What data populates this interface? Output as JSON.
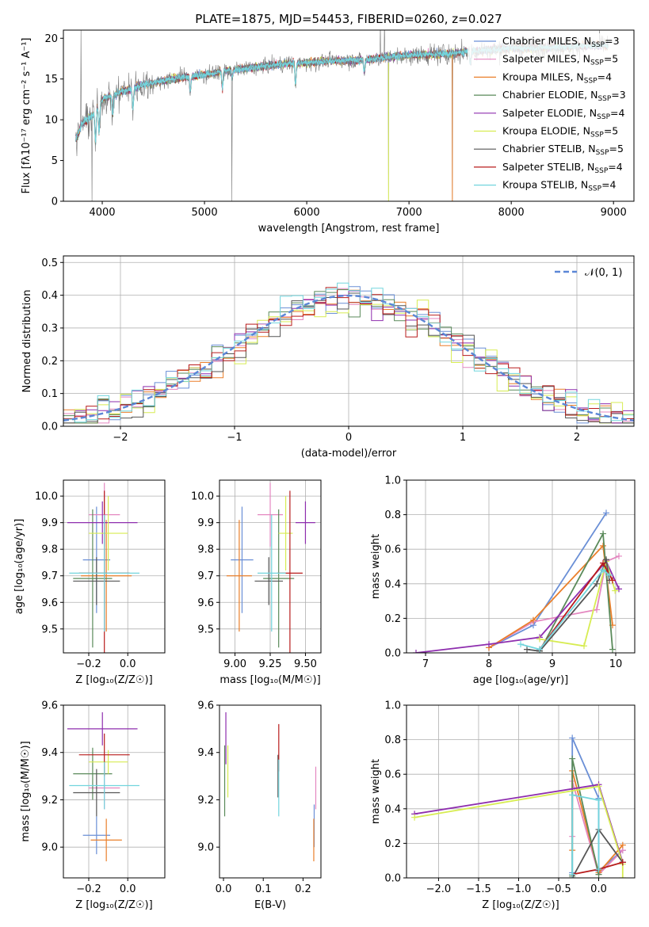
{
  "figure_title": "PLATE=1875, MJD=54453, FIBERID=0260, z=0.027",
  "legend_names": [
    "Chabrier MILES, N",
    "Salpeter MILES, N",
    "Kroupa MILES, N",
    "Chabrier ELODIE, N",
    "Salpeter ELODIE, N",
    "Kroupa ELODIE, N",
    "Chabrier STELIB, N",
    "Salpeter STELIB, N",
    "Kroupa STELIB, N"
  ],
  "legend_sub": "SSP",
  "legend_nssp": [
    "3",
    "5",
    "4",
    "3",
    "4",
    "5",
    "5",
    "4",
    "4"
  ],
  "colors": [
    "#6a8fd6",
    "#e487c0",
    "#ea7f2a",
    "#5a8a5a",
    "#8e2eae",
    "#d7ec52",
    "#555555",
    "#b81c1c",
    "#72d5dd"
  ],
  "gauss_label": "𝒩(0, 1)",
  "chart_data": [
    {
      "type": "line",
      "panel": "spectrum",
      "title": "PLATE=1875, MJD=54453, FIBERID=0260, z=0.027",
      "xlabel": "wavelength [Angstrom, rest frame]",
      "ylabel": "Flux [f_λ 10^-17 erg cm^-2 s^-1 A^-1]",
      "xlim": [
        3620,
        9200
      ],
      "ylim": [
        0,
        21
      ],
      "x_ticks": [
        4000,
        5000,
        6000,
        7000,
        8000,
        9000
      ],
      "y_ticks": [
        0,
        5,
        10,
        15,
        20
      ],
      "legend_position": "top-right",
      "grid": false,
      "continuum": {
        "x": [
          3740,
          3800,
          3900,
          4000,
          4100,
          4200,
          4400,
          4600,
          4800,
          5000,
          5200,
          5400,
          5600,
          5800,
          6000,
          6200,
          6400,
          6600,
          6800,
          7000,
          7200,
          7400,
          7600,
          7800,
          8000,
          8200,
          8400,
          8600,
          8800,
          8950
        ],
        "y": [
          7.5,
          9.5,
          10.5,
          12.5,
          13.0,
          13.5,
          14.3,
          14.8,
          15.3,
          15.5,
          16.0,
          16.3,
          16.6,
          16.9,
          17.0,
          17.2,
          17.3,
          17.4,
          17.7,
          17.9,
          18.0,
          18.1,
          18.4,
          18.6,
          18.8,
          18.8,
          18.9,
          19.0,
          19.1,
          19.2
        ]
      }
    },
    {
      "type": "histogram",
      "panel": "residuals",
      "xlabel": "(data-model)/error",
      "ylabel": "Normed distribution",
      "xlim": [
        -2.5,
        2.5
      ],
      "ylim": [
        0,
        0.52
      ],
      "x_ticks": [
        -2,
        -1,
        0,
        1,
        2
      ],
      "y_ticks": [
        0.0,
        0.1,
        0.2,
        0.3,
        0.4,
        0.5
      ],
      "grid": true,
      "bin_width": 0.1,
      "gaussian": {
        "name": "𝒩(0, 1)",
        "mean": 0,
        "sigma": 1
      }
    },
    {
      "type": "scatter",
      "panel": "age-vs-Z",
      "xlabel": "Z [log10(Z/Z☉)]",
      "ylabel": "age [log10(age/yr)]",
      "xlim": [
        -0.33,
        0.19
      ],
      "ylim": [
        9.41,
        10.06
      ],
      "x_ticks": [
        -0.2,
        0.0
      ],
      "y_ticks": [
        9.5,
        9.6,
        9.7,
        9.8,
        9.9,
        10.0
      ],
      "grid": true,
      "points": [
        {
          "x": -0.16,
          "xerr": 0.07,
          "y": 9.76,
          "yerr": 0.2
        },
        {
          "x": -0.12,
          "xerr": 0.08,
          "y": 9.93,
          "yerr": 0.12
        },
        {
          "x": -0.11,
          "xerr": 0.13,
          "y": 9.7,
          "yerr": 0.21
        },
        {
          "x": -0.18,
          "xerr": 0.1,
          "y": 9.69,
          "yerr": 0.26
        },
        {
          "x": -0.13,
          "xerr": 0.18,
          "y": 9.9,
          "yerr": 0.08
        },
        {
          "x": -0.1,
          "xerr": 0.1,
          "y": 9.86,
          "yerr": 0.14
        },
        {
          "x": -0.16,
          "xerr": 0.12,
          "y": 9.68,
          "yerr": 0.09
        },
        {
          "x": -0.12,
          "xerr": 0.13,
          "y": 9.71,
          "yerr": 0.31
        },
        {
          "x": -0.12,
          "xerr": 0.18,
          "y": 9.71,
          "yerr": 0.22
        }
      ]
    },
    {
      "type": "scatter",
      "panel": "age-vs-mass",
      "xlabel": "mass [log10(M/M☉)]",
      "ylabel": "",
      "xlim": [
        8.89,
        9.61
      ],
      "ylim": [
        9.41,
        10.06
      ],
      "x_ticks": [
        9.0,
        9.25,
        9.5
      ],
      "y_ticks": [
        9.5,
        9.6,
        9.7,
        9.8,
        9.9,
        10.0
      ],
      "grid": true,
      "points": [
        {
          "x": 9.05,
          "xerr": 0.08,
          "y": 9.76,
          "yerr": 0.2
        },
        {
          "x": 9.25,
          "xerr": 0.09,
          "y": 9.93,
          "yerr": 0.12
        },
        {
          "x": 9.03,
          "xerr": 0.09,
          "y": 9.7,
          "yerr": 0.21
        },
        {
          "x": 9.31,
          "xerr": 0.11,
          "y": 9.69,
          "yerr": 0.26
        },
        {
          "x": 9.5,
          "xerr": 0.07,
          "y": 9.9,
          "yerr": 0.08
        },
        {
          "x": 9.36,
          "xerr": 0.05,
          "y": 9.86,
          "yerr": 0.14
        },
        {
          "x": 9.24,
          "xerr": 0.1,
          "y": 9.68,
          "yerr": 0.09
        },
        {
          "x": 9.39,
          "xerr": 0.09,
          "y": 9.71,
          "yerr": 0.31
        },
        {
          "x": 9.26,
          "xerr": 0.1,
          "y": 9.71,
          "yerr": 0.22
        }
      ]
    },
    {
      "type": "line",
      "panel": "mass-weight-vs-age",
      "xlabel": "age [log10(age/yr)]",
      "ylabel": "mass weight",
      "xlim": [
        6.7,
        10.3
      ],
      "ylim": [
        0,
        1.0
      ],
      "x_ticks": [
        7,
        8,
        9,
        10
      ],
      "y_ticks": [
        0.0,
        0.2,
        0.4,
        0.6,
        0.8,
        1.0
      ],
      "grid": true,
      "series": [
        {
          "x": [
            8.0,
            8.7,
            9.85
          ],
          "y": [
            0.03,
            0.16,
            0.81
          ]
        },
        {
          "x": [
            8.0,
            8.7,
            9.7,
            9.85,
            10.05
          ],
          "y": [
            0.03,
            0.18,
            0.25,
            0.53,
            0.56
          ]
        },
        {
          "x": [
            8.0,
            8.7,
            9.8,
            9.95
          ],
          "y": [
            0.03,
            0.19,
            0.62,
            0.16
          ]
        },
        {
          "x": [
            8.8,
            9.8,
            9.95
          ],
          "y": [
            0.01,
            0.69,
            0.02
          ]
        },
        {
          "x": [
            6.85,
            8.0,
            8.8,
            9.85,
            10.05
          ],
          "y": [
            0.0,
            0.05,
            0.09,
            0.53,
            0.37
          ]
        },
        {
          "x": [
            8.8,
            9.5,
            9.85,
            9.99
          ],
          "y": [
            0.08,
            0.04,
            0.53,
            0.36
          ]
        },
        {
          "x": [
            8.6,
            8.8,
            9.7,
            9.85,
            9.9
          ],
          "y": [
            0.02,
            0.01,
            0.4,
            0.54,
            0.42
          ]
        },
        {
          "x": [
            8.8,
            9.8,
            9.95
          ],
          "y": [
            0.02,
            0.52,
            0.42
          ]
        },
        {
          "x": [
            8.5,
            8.8,
            9.8,
            9.9
          ],
          "y": [
            0.05,
            0.02,
            0.48,
            0.45
          ]
        }
      ]
    },
    {
      "type": "scatter",
      "panel": "mass-vs-Z",
      "xlabel": "Z [log10(Z/Z☉)]",
      "ylabel": "mass [log10(M/M☉)]",
      "xlim": [
        -0.33,
        0.19
      ],
      "ylim": [
        8.87,
        9.6
      ],
      "x_ticks": [
        -0.2,
        0.0
      ],
      "y_ticks": [
        9.0,
        9.2,
        9.4,
        9.6
      ],
      "grid": true,
      "points": [
        {
          "x": -0.16,
          "xerr": 0.07,
          "y": 9.05,
          "yerr": 0.08
        },
        {
          "x": -0.12,
          "xerr": 0.08,
          "y": 9.25,
          "yerr": 0.09
        },
        {
          "x": -0.11,
          "xerr": 0.08,
          "y": 9.03,
          "yerr": 0.09
        },
        {
          "x": -0.18,
          "xerr": 0.1,
          "y": 9.31,
          "yerr": 0.11
        },
        {
          "x": -0.13,
          "xerr": 0.18,
          "y": 9.5,
          "yerr": 0.07
        },
        {
          "x": -0.1,
          "xerr": 0.1,
          "y": 9.36,
          "yerr": 0.05
        },
        {
          "x": -0.16,
          "xerr": 0.12,
          "y": 9.23,
          "yerr": 0.1
        },
        {
          "x": -0.12,
          "xerr": 0.13,
          "y": 9.39,
          "yerr": 0.09
        },
        {
          "x": -0.12,
          "xerr": 0.18,
          "y": 9.26,
          "yerr": 0.1
        }
      ]
    },
    {
      "type": "scatter",
      "panel": "mass-vs-ebv",
      "xlabel": "E(B-V)",
      "ylabel": "",
      "xlim": [
        -0.01,
        0.245
      ],
      "ylim": [
        8.87,
        9.6
      ],
      "x_ticks": [
        0.0,
        0.1,
        0.2
      ],
      "y_ticks": [
        9.0,
        9.2,
        9.4,
        9.6
      ],
      "grid": false,
      "points": [
        {
          "x": 0.228,
          "y": 9.09,
          "yerr": 0.09
        },
        {
          "x": 0.232,
          "y": 9.25,
          "yerr": 0.09
        },
        {
          "x": 0.227,
          "y": 9.03,
          "yerr": 0.09
        },
        {
          "x": 0.003,
          "y": 9.28,
          "yerr": 0.15
        },
        {
          "x": 0.006,
          "y": 9.46,
          "yerr": 0.11
        },
        {
          "x": 0.011,
          "y": 9.32,
          "yerr": 0.11
        },
        {
          "x": 0.137,
          "y": 9.3,
          "yerr": 0.09
        },
        {
          "x": 0.139,
          "y": 9.42,
          "yerr": 0.1
        },
        {
          "x": 0.139,
          "y": 9.25,
          "yerr": 0.12
        }
      ]
    },
    {
      "type": "line",
      "panel": "mass-weight-vs-Z",
      "xlabel": "Z [log10(Z/Z☉)]",
      "ylabel": "mass weight",
      "xlim": [
        -2.4,
        0.45
      ],
      "ylim": [
        0,
        1.0
      ],
      "x_ticks": [
        -2.0,
        -1.5,
        -1.0,
        -0.5,
        0.0
      ],
      "y_ticks": [
        0.0,
        0.2,
        0.4,
        0.6,
        0.8,
        1.0
      ],
      "grid": true,
      "series": [
        {
          "x": [
            -0.33,
            -0.33,
            0.0,
            0.0,
            0.3
          ],
          "y": [
            0.03,
            0.81,
            0.46,
            0.04,
            0.16
          ]
        },
        {
          "x": [
            -0.33,
            -0.33,
            0.0,
            0.3
          ],
          "y": [
            0.24,
            0.56,
            0.02,
            0.16
          ]
        },
        {
          "x": [
            -0.33,
            -0.33,
            0.0,
            0.3
          ],
          "y": [
            0.16,
            0.62,
            0.03,
            0.19
          ]
        },
        {
          "x": [
            -0.33,
            -0.33,
            0.0
          ],
          "y": [
            0.01,
            0.69,
            0.02
          ]
        },
        {
          "x": [
            -2.3,
            0.0,
            0.3
          ],
          "y": [
            0.37,
            0.54,
            0.09
          ]
        },
        {
          "x": [
            -2.3,
            0.0,
            0.3,
            0.3
          ],
          "y": [
            0.35,
            0.53,
            0.08,
            0.0
          ]
        },
        {
          "x": [
            -0.33,
            0.0,
            0.3
          ],
          "y": [
            0.0,
            0.28,
            0.09
          ]
        },
        {
          "x": [
            -0.33,
            0.0,
            0.3
          ],
          "y": [
            0.02,
            0.05,
            0.09
          ]
        },
        {
          "x": [
            -0.33,
            -0.33,
            0.0,
            0.0
          ],
          "y": [
            0.02,
            0.48,
            0.45,
            0.05
          ]
        }
      ]
    }
  ]
}
